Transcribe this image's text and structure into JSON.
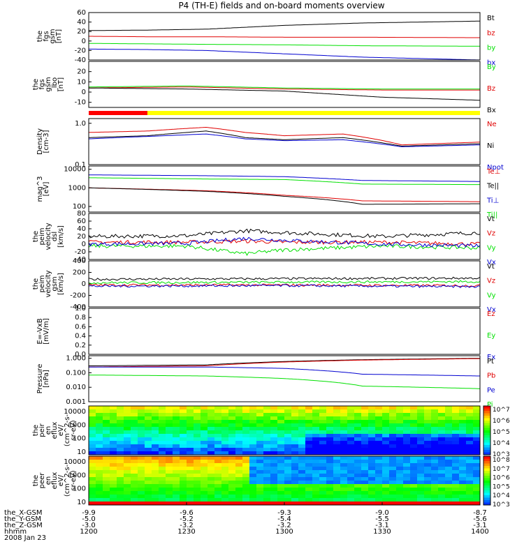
{
  "title": "P4 (TH-E) fields and on-board moments overview",
  "colors": {
    "black": "#000000",
    "red": "#e00000",
    "green": "#00e000",
    "blue": "#0000d0",
    "bar_red": "#ff0000",
    "bar_yellow": "#ffff00"
  },
  "chart_data": [
    {
      "id": "fgs_gsm",
      "type": "line",
      "ylabel": [
        "the",
        "fgs",
        "gsm",
        "[nT]"
      ],
      "ylim": [
        -40,
        60
      ],
      "yticks": [
        "60",
        "40",
        "20",
        "0",
        "-20",
        "-40"
      ],
      "ytick_vals": [
        60,
        40,
        20,
        0,
        -20,
        -40
      ],
      "x_range": [
        1200,
        1400
      ],
      "series": [
        {
          "name": "Bt",
          "color": "black",
          "x": [
            1200,
            1230,
            1260,
            1300,
            1340,
            1400
          ],
          "values": [
            22,
            23,
            25,
            33,
            38,
            42
          ]
        },
        {
          "name": "bz",
          "color": "red",
          "x": [
            1200,
            1230,
            1260,
            1300,
            1340,
            1400
          ],
          "values": [
            10,
            9,
            9,
            8,
            8,
            7
          ]
        },
        {
          "name": "by",
          "color": "green",
          "x": [
            1200,
            1230,
            1260,
            1300,
            1340,
            1400
          ],
          "values": [
            -5,
            -6,
            -7,
            -8,
            -10,
            -11
          ]
        },
        {
          "name": "bx",
          "color": "blue",
          "x": [
            1200,
            1230,
            1260,
            1300,
            1340,
            1400
          ],
          "values": [
            -17,
            -18,
            -20,
            -27,
            -34,
            -40
          ]
        }
      ]
    },
    {
      "id": "fgs_gse_lbo",
      "type": "line",
      "ylabel": [
        "the",
        "fgs",
        "gsm",
        "_lbo",
        "[nT]"
      ],
      "ylim": [
        -15,
        30
      ],
      "yticks": [
        "20",
        "10",
        "0",
        "-10"
      ],
      "ytick_vals": [
        20,
        10,
        0,
        -10
      ],
      "series": [
        {
          "name": "By",
          "color": "green",
          "x": [
            1200,
            1250,
            1300,
            1350,
            1400
          ],
          "values": [
            5,
            6,
            4,
            3,
            3
          ]
        },
        {
          "name": "Bz",
          "color": "red",
          "x": [
            1200,
            1250,
            1300,
            1350,
            1400
          ],
          "values": [
            4,
            5,
            3,
            2,
            2
          ]
        },
        {
          "name": "Bx",
          "color": "black",
          "x": [
            1200,
            1250,
            1300,
            1350,
            1400
          ],
          "values": [
            4,
            3,
            1,
            -5,
            -8
          ]
        }
      ]
    },
    {
      "id": "density",
      "type": "line",
      "scale": "log",
      "ylabel": [
        "Density",
        "[cm-3]"
      ],
      "ylim": [
        0.1,
        1.3
      ],
      "yticks": [
        "1.0",
        "0.1"
      ],
      "ytick_vals": [
        1.0,
        0.1
      ],
      "series": [
        {
          "name": "Ne",
          "color": "red",
          "x": [
            1200,
            1230,
            1260,
            1280,
            1300,
            1330,
            1360,
            1400
          ],
          "values": [
            0.6,
            0.65,
            0.8,
            0.6,
            0.5,
            0.55,
            0.3,
            0.35
          ]
        },
        {
          "name": "Ni",
          "color": "black",
          "x": [
            1200,
            1230,
            1260,
            1280,
            1300,
            1330,
            1360,
            1400
          ],
          "values": [
            0.45,
            0.5,
            0.65,
            0.45,
            0.4,
            0.45,
            0.28,
            0.32
          ]
        },
        {
          "name": "Npot",
          "color": "blue",
          "x": [
            1200,
            1230,
            1260,
            1280,
            1300,
            1330,
            1360,
            1400
          ],
          "values": [
            0.42,
            0.48,
            0.55,
            0.42,
            0.38,
            0.4,
            0.27,
            0.3
          ]
        }
      ]
    },
    {
      "id": "temperature",
      "type": "line",
      "scale": "log",
      "ylabel": [
        "mag^3",
        "[eV]"
      ],
      "ylim": [
        50,
        15000
      ],
      "yticks": [
        "10000",
        "1000",
        "100"
      ],
      "ytick_vals": [
        10000,
        1000,
        100
      ],
      "series": [
        {
          "name": "Te⊥",
          "color": "red",
          "x": [
            1200,
            1260,
            1300,
            1340,
            1400
          ],
          "values": [
            1000,
            700,
            400,
            200,
            180
          ]
        },
        {
          "name": "Te||",
          "color": "black",
          "x": [
            1200,
            1260,
            1300,
            1340,
            1400
          ],
          "values": [
            1000,
            650,
            350,
            130,
            140
          ]
        },
        {
          "name": "Ti⊥",
          "color": "blue",
          "x": [
            1200,
            1260,
            1300,
            1340,
            1400
          ],
          "values": [
            5000,
            4500,
            4000,
            2500,
            2200
          ]
        },
        {
          "name": "Ti||",
          "color": "green",
          "x": [
            1200,
            1260,
            1300,
            1340,
            1400
          ],
          "values": [
            3500,
            3000,
            2800,
            1600,
            1500
          ]
        }
      ]
    },
    {
      "id": "peim_velocity_dsl",
      "type": "line",
      "ylabel": [
        "the",
        "peim",
        "velocity",
        "dsl",
        "[km/s]"
      ],
      "ylim": [
        -40,
        80
      ],
      "yticks": [
        "80",
        "60",
        "40",
        "20",
        "0",
        "-20",
        "-40"
      ],
      "ytick_vals": [
        80,
        60,
        40,
        20,
        0,
        -20,
        -40
      ],
      "series": [
        {
          "name": "Vt",
          "color": "black",
          "x": [
            1200,
            1250,
            1280,
            1300,
            1350,
            1400
          ],
          "values": [
            20,
            22,
            35,
            30,
            20,
            30
          ]
        },
        {
          "name": "Vz",
          "color": "red",
          "x": [
            1200,
            1250,
            1280,
            1300,
            1350,
            1400
          ],
          "values": [
            5,
            5,
            8,
            5,
            5,
            0
          ]
        },
        {
          "name": "Vy",
          "color": "green",
          "x": [
            1200,
            1250,
            1280,
            1300,
            1350,
            1400
          ],
          "values": [
            -5,
            -5,
            -25,
            -15,
            -5,
            -10
          ]
        },
        {
          "name": "Vx",
          "color": "blue",
          "x": [
            1200,
            1250,
            1280,
            1300,
            1350,
            1400
          ],
          "values": [
            0,
            2,
            15,
            10,
            0,
            -5
          ]
        }
      ]
    },
    {
      "id": "peim_velocity_gsm",
      "type": "line",
      "ylabel": [
        "the",
        "peim",
        "velocity",
        "gsm",
        "[km/s]"
      ],
      "ylim": [
        -400,
        400
      ],
      "yticks": [
        "400",
        "200",
        "0",
        "-200",
        "-400"
      ],
      "ytick_vals": [
        400,
        200,
        0,
        -200,
        -400
      ],
      "series": [
        {
          "name": "Vt",
          "color": "black",
          "x": [
            1200,
            1300,
            1400
          ],
          "values": [
            80,
            90,
            100
          ]
        },
        {
          "name": "Vz",
          "color": "red",
          "x": [
            1200,
            1300,
            1400
          ],
          "values": [
            -20,
            -20,
            -30
          ]
        },
        {
          "name": "Vy",
          "color": "green",
          "x": [
            1200,
            1300,
            1400
          ],
          "values": [
            20,
            30,
            40
          ]
        },
        {
          "name": "Vx",
          "color": "blue",
          "x": [
            1200,
            1300,
            1400
          ],
          "values": [
            -40,
            -30,
            -50
          ]
        }
      ]
    },
    {
      "id": "efield",
      "type": "line",
      "ylabel": [
        "E=-VxB",
        "[mV/m]"
      ],
      "ylim": [
        0,
        1
      ],
      "yticks": [
        "1.0",
        "0.8",
        "0.6",
        "0.4",
        "0.2",
        "0.0"
      ],
      "ytick_vals": [
        1.0,
        0.8,
        0.6,
        0.4,
        0.2,
        0.0
      ],
      "series": [
        {
          "name": "Ez",
          "color": "red",
          "x": [],
          "values": []
        },
        {
          "name": "Ey",
          "color": "green",
          "x": [],
          "values": []
        },
        {
          "name": "Ex",
          "color": "blue",
          "x": [],
          "values": []
        }
      ]
    },
    {
      "id": "pressure",
      "type": "line",
      "scale": "log",
      "ylabel": [
        "Pressure",
        "[nPa]"
      ],
      "ylim": [
        0.001,
        1.5
      ],
      "yticks": [
        "1.000",
        "0.100",
        "0.010",
        "0.001"
      ],
      "ytick_vals": [
        1.0,
        0.1,
        0.01,
        0.001
      ],
      "series": [
        {
          "name": "Pt",
          "color": "black",
          "x": [
            1200,
            1260,
            1300,
            1340,
            1400
          ],
          "values": [
            0.3,
            0.35,
            0.6,
            0.8,
            1.0
          ]
        },
        {
          "name": "Pb",
          "color": "red",
          "x": [
            1200,
            1260,
            1300,
            1340,
            1400
          ],
          "values": [
            0.25,
            0.3,
            0.55,
            0.75,
            0.95
          ]
        },
        {
          "name": "Pe",
          "color": "blue",
          "x": [
            1200,
            1260,
            1300,
            1340,
            1400
          ],
          "values": [
            0.25,
            0.25,
            0.2,
            0.08,
            0.06
          ]
        },
        {
          "name": "Pi",
          "color": "green",
          "x": [
            1200,
            1260,
            1300,
            1340,
            1400
          ],
          "values": [
            0.07,
            0.06,
            0.04,
            0.012,
            0.008
          ]
        }
      ]
    },
    {
      "id": "peir_eflux",
      "type": "heatmap",
      "ylabel": [
        "the",
        "peir",
        "en",
        "eflux",
        "eV/",
        "(cm^2-s-",
        "sr-eV)"
      ],
      "yticks": [
        "10000",
        "1000",
        "100",
        "10"
      ],
      "colorbar_ticks": [
        "10^7",
        "10^6",
        "10^5",
        "10^4",
        "10^3"
      ]
    },
    {
      "id": "peer_eflux",
      "type": "heatmap",
      "ylabel": [
        "the",
        "peer",
        "en",
        "eflux",
        "eV/",
        "(cm^2-s-",
        "sr-eV)"
      ],
      "yticks": [
        "10000",
        "1000",
        "100",
        "10"
      ],
      "colorbar_ticks": [
        "10^8",
        "10^7",
        "10^6",
        "10^5",
        "10^4",
        "10^3"
      ]
    }
  ],
  "xaxis": {
    "row_labels": [
      "the_X-GSM",
      "the_Y-GSM",
      "the_Z-GSM",
      "hhmm",
      "2008 Jan 23"
    ],
    "columns": [
      {
        "x": [
          "-9.9",
          "-5.0",
          "-3.0",
          "1200"
        ]
      },
      {
        "x": [
          "-9.6",
          "-5.2",
          "-3.2",
          "1230"
        ]
      },
      {
        "x": [
          "-9.3",
          "-5.4",
          "-3.2",
          "1300"
        ]
      },
      {
        "x": [
          "-9.0",
          "-5.5",
          "-3.1",
          "1330"
        ]
      },
      {
        "x": [
          "-8.7",
          "-5.6",
          "-3.1",
          "1400"
        ]
      }
    ]
  }
}
